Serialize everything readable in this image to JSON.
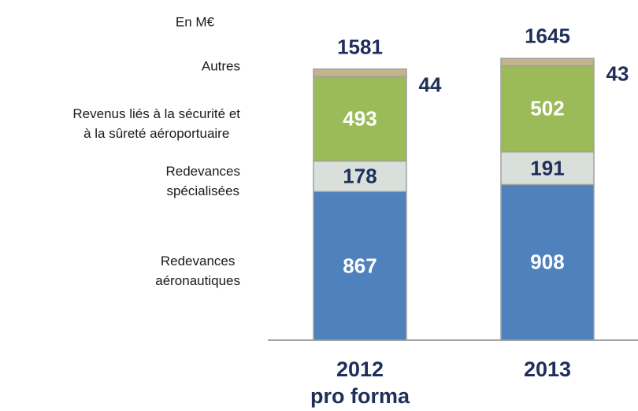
{
  "chart_data": {
    "type": "stacked_bar",
    "unit_label": "En M€",
    "categories": [
      "2012\npro forma",
      "2013"
    ],
    "totals": [
      1581,
      1645
    ],
    "series": [
      {
        "name": "Redevances\naéronautiques",
        "color": "#4f81bd",
        "label_color": "#ffffff",
        "values": [
          867,
          908
        ]
      },
      {
        "name": "Redevances\nspécialisées",
        "color": "#d9e0dc",
        "label_color": "#1f2f5a",
        "values": [
          178,
          191
        ]
      },
      {
        "name": "Revenus liés à la sécurité et\nà la sûreté aéroportuaire",
        "color": "#9bbb59",
        "label_color": "#ffffff",
        "values": [
          493,
          502
        ]
      },
      {
        "name": "Autres",
        "color": "#c4b48a",
        "label_color": "#1f2f5a",
        "values": [
          44,
          43
        ]
      }
    ]
  }
}
